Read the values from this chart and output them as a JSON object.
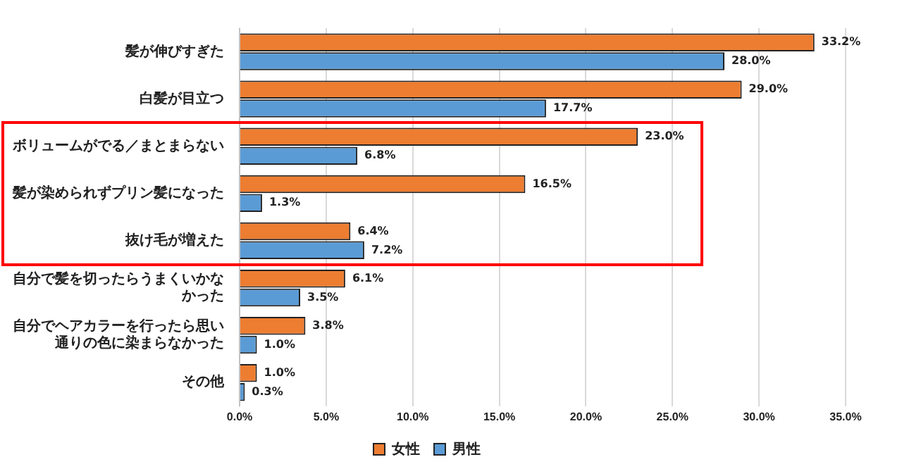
{
  "chart_data": {
    "type": "bar",
    "orientation": "horizontal",
    "categories": [
      "髪が伸びすぎた",
      "白髪が目立つ",
      "ボリュームがでる／まとまらない",
      "髪が染められずプリン髪になった",
      "抜け毛が増えた",
      "自分で髪を切ったらうまくいかなかった",
      "自分でヘアカラーを行ったら思い通りの色に染まらなかった",
      "その他"
    ],
    "series": [
      {
        "name": "女性",
        "color": "#ed7d31",
        "values": [
          33.2,
          29.0,
          23.0,
          16.5,
          6.4,
          6.1,
          3.8,
          1.0
        ],
        "value_labels": [
          "33.2%",
          "29.0%",
          "23.0%",
          "16.5%",
          "6.4%",
          "6.1%",
          "3.8%",
          "1.0%"
        ]
      },
      {
        "name": "男性",
        "color": "#5b9bd5",
        "values": [
          28.0,
          17.7,
          6.8,
          1.3,
          7.2,
          3.5,
          1.0,
          0.3
        ],
        "value_labels": [
          "28.0%",
          "17.7%",
          "6.8%",
          "1.3%",
          "7.2%",
          "3.5%",
          "1.0%",
          "0.3%"
        ]
      }
    ],
    "xlim": [
      0,
      35
    ],
    "xticks": [
      {
        "value": 0,
        "label": "0.0%"
      },
      {
        "value": 5,
        "label": "5.0%"
      },
      {
        "value": 10,
        "label": "10.0%"
      },
      {
        "value": 15,
        "label": "15.0%"
      },
      {
        "value": 20,
        "label": "20.0%"
      },
      {
        "value": 25,
        "label": "25.0%"
      },
      {
        "value": 30,
        "label": "30.0%"
      },
      {
        "value": 35,
        "label": "35.0%"
      }
    ],
    "grid": "x",
    "legend": "bottom"
  }
}
